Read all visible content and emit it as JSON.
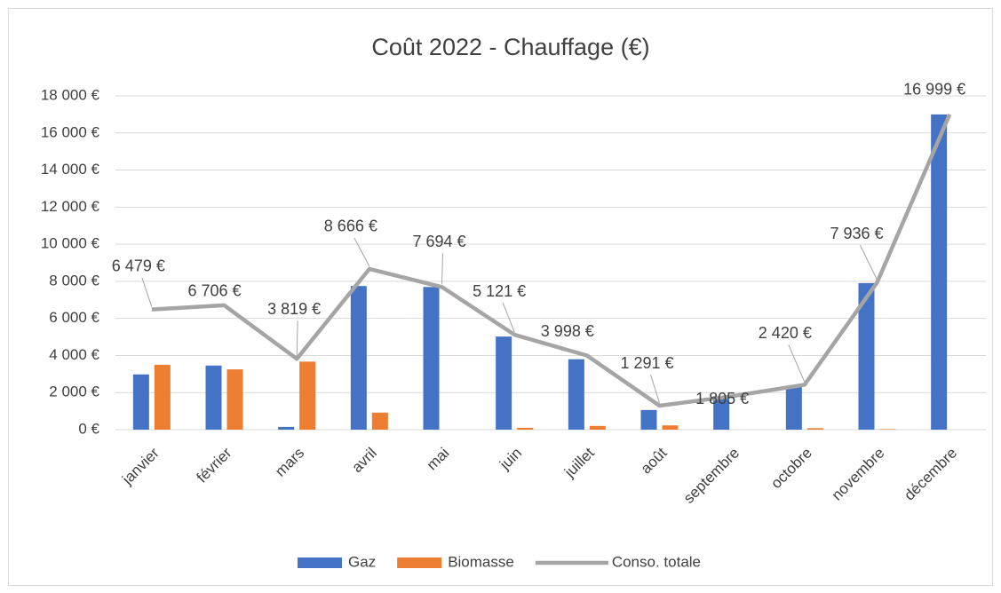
{
  "chart_data": {
    "type": "bar",
    "title": "Coût 2022 - Chauffage (€)",
    "categories": [
      "janvier",
      "février",
      "mars",
      "avril",
      "mai",
      "juin",
      "juillet",
      "août",
      "septembre",
      "octobre",
      "novembre",
      "décembre"
    ],
    "series": [
      {
        "name": "Gaz",
        "color": "#4472c4",
        "values": [
          2979,
          3456,
          149,
          7746,
          7694,
          5021,
          3798,
          1061,
          1805,
          2340,
          7906,
          16999
        ]
      },
      {
        "name": "Biomasse",
        "color": "#ed7d31",
        "values": [
          3500,
          3250,
          3670,
          920,
          0,
          100,
          200,
          230,
          0,
          80,
          30,
          0
        ]
      },
      {
        "name": "Conso. totale",
        "color": "#a5a5a5",
        "type": "line",
        "values": [
          6479,
          6706,
          3819,
          8666,
          7694,
          5121,
          3998,
          1291,
          1805,
          2420,
          7936,
          16999
        ],
        "value_labels": [
          "6 479 €",
          "6 706 €",
          "3 819 €",
          "8 666 €",
          "7 694 €",
          "5 121 €",
          "3 998 €",
          "1 291 €",
          "1 805 €",
          "2 420 €",
          "7 936 €",
          "16 999 €"
        ]
      }
    ],
    "ylim": [
      0,
      18000
    ],
    "yticks": [
      {
        "value": 0,
        "label": "0 €"
      },
      {
        "value": 2000,
        "label": "2 000 €"
      },
      {
        "value": 4000,
        "label": "4 000 €"
      },
      {
        "value": 6000,
        "label": "6 000 €"
      },
      {
        "value": 8000,
        "label": "8 000 €"
      },
      {
        "value": 10000,
        "label": "10 000 €"
      },
      {
        "value": 12000,
        "label": "12 000 €"
      },
      {
        "value": 14000,
        "label": "14 000 €"
      },
      {
        "value": 16000,
        "label": "16 000 €"
      },
      {
        "value": 18000,
        "label": "18 000 €"
      }
    ],
    "grid": true,
    "legend": "bottom"
  }
}
